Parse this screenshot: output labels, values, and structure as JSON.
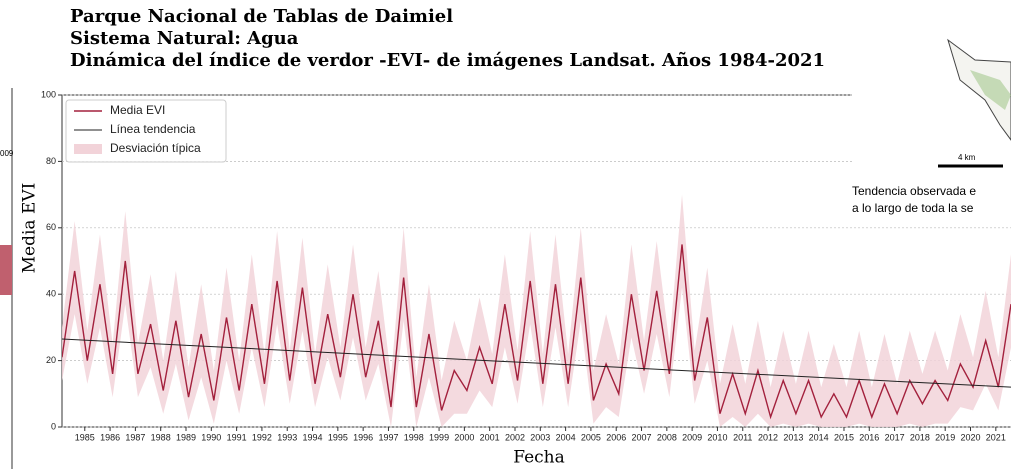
{
  "chart_data": {
    "type": "line",
    "title_lines": [
      "Parque Nacional de Tablas de Daimiel",
      "Sistema Natural: Agua",
      "Dinámica del índice de verdor -EVI- de imágenes Landsat. Años 1984-2021"
    ],
    "x_label": "Fecha",
    "y_label": "Media EVI",
    "legend": "upper left",
    "grid": true,
    "xlim": [
      1984.1,
      2021.6
    ],
    "xticks": [
      1985,
      1986,
      1987,
      1988,
      1989,
      1990,
      1991,
      1992,
      1993,
      1994,
      1995,
      1996,
      1997,
      1998,
      1999,
      2000,
      2001,
      2002,
      2003,
      2004,
      2005,
      2006,
      2007,
      2008,
      2009,
      2010,
      2011,
      2012,
      2013,
      2014,
      2015,
      2016,
      2017,
      2018,
      2019,
      2020,
      2021
    ],
    "ylim": [
      0,
      100
    ],
    "yticks": [
      0,
      20,
      40,
      60,
      80,
      100
    ],
    "x": [
      1984.1,
      1984.6,
      1985.1,
      1985.6,
      1986.1,
      1986.6,
      1987.1,
      1987.6,
      1988.1,
      1988.6,
      1989.1,
      1989.6,
      1990.1,
      1990.6,
      1991.1,
      1991.6,
      1992.1,
      1992.6,
      1993.1,
      1993.6,
      1994.1,
      1994.6,
      1995.1,
      1995.6,
      1996.1,
      1996.6,
      1997.1,
      1997.6,
      1998.1,
      1998.6,
      1999.1,
      1999.6,
      2000.1,
      2000.6,
      2001.1,
      2001.6,
      2002.1,
      2002.6,
      2003.1,
      2003.6,
      2004.1,
      2004.6,
      2005.1,
      2005.6,
      2006.1,
      2006.6,
      2007.1,
      2007.6,
      2008.1,
      2008.6,
      2009.1,
      2009.6,
      2010.1,
      2010.6,
      2011.1,
      2011.6,
      2012.1,
      2012.6,
      2013.1,
      2013.6,
      2014.1,
      2014.6,
      2015.1,
      2015.6,
      2016.1,
      2016.6,
      2017.1,
      2017.6,
      2018.1,
      2018.6,
      2019.1,
      2019.6,
      2020.1,
      2020.6,
      2021.1,
      2021.6
    ],
    "series": [
      {
        "name": "Media EVI",
        "color": "#a3213d",
        "values": [
          21,
          47,
          20,
          43,
          16,
          50,
          16,
          31,
          11,
          32,
          9,
          28,
          8,
          33,
          11,
          37,
          13,
          44,
          14,
          42,
          13,
          34,
          15,
          40,
          15,
          32,
          6,
          45,
          6,
          28,
          5,
          17,
          11,
          24,
          13,
          37,
          14,
          44,
          13,
          43,
          13,
          45,
          8,
          19,
          10,
          40,
          17,
          41,
          16,
          55,
          14,
          33,
          4,
          16,
          4,
          17,
          3,
          14,
          4,
          14,
          3,
          10,
          3,
          14,
          3,
          13,
          4,
          14,
          7,
          14,
          8,
          19,
          12,
          26,
          12,
          37
        ]
      },
      {
        "name": "Línea tendencia",
        "color": "#222222",
        "x": [
          1984.1,
          2021.6
        ],
        "values": [
          26.5,
          12
        ]
      }
    ],
    "band": {
      "name": "Desviación típica",
      "color": "#f2d3d9",
      "upper": [
        30,
        62,
        29,
        58,
        25,
        65,
        25,
        46,
        20,
        47,
        18,
        43,
        17,
        48,
        20,
        52,
        22,
        59,
        23,
        57,
        22,
        49,
        24,
        55,
        24,
        47,
        15,
        60,
        15,
        43,
        14,
        32,
        20,
        39,
        22,
        52,
        23,
        59,
        22,
        58,
        22,
        60,
        17,
        34,
        19,
        55,
        26,
        56,
        25,
        70,
        23,
        48,
        13,
        31,
        13,
        32,
        12,
        29,
        13,
        29,
        12,
        25,
        12,
        29,
        12,
        28,
        13,
        29,
        16,
        29,
        17,
        34,
        21,
        41,
        21,
        52
      ],
      "lower": [
        14,
        34,
        13,
        30,
        9,
        37,
        9,
        18,
        4,
        19,
        2,
        15,
        1,
        20,
        4,
        24,
        6,
        31,
        7,
        29,
        6,
        21,
        8,
        27,
        8,
        19,
        0,
        32,
        0,
        15,
        0,
        4,
        4,
        11,
        6,
        24,
        7,
        31,
        6,
        30,
        6,
        32,
        1,
        6,
        3,
        27,
        10,
        28,
        9,
        42,
        7,
        20,
        0,
        3,
        0,
        4,
        0,
        1,
        0,
        1,
        0,
        0,
        0,
        1,
        0,
        0,
        0,
        1,
        0,
        1,
        1,
        6,
        5,
        13,
        5,
        24
      ]
    }
  },
  "map": {
    "scale": "4 km",
    "caption": [
      "Tendencia observada e",
      "a lo largo de toda la se"
    ]
  },
  "fragments": [
    "009"
  ]
}
